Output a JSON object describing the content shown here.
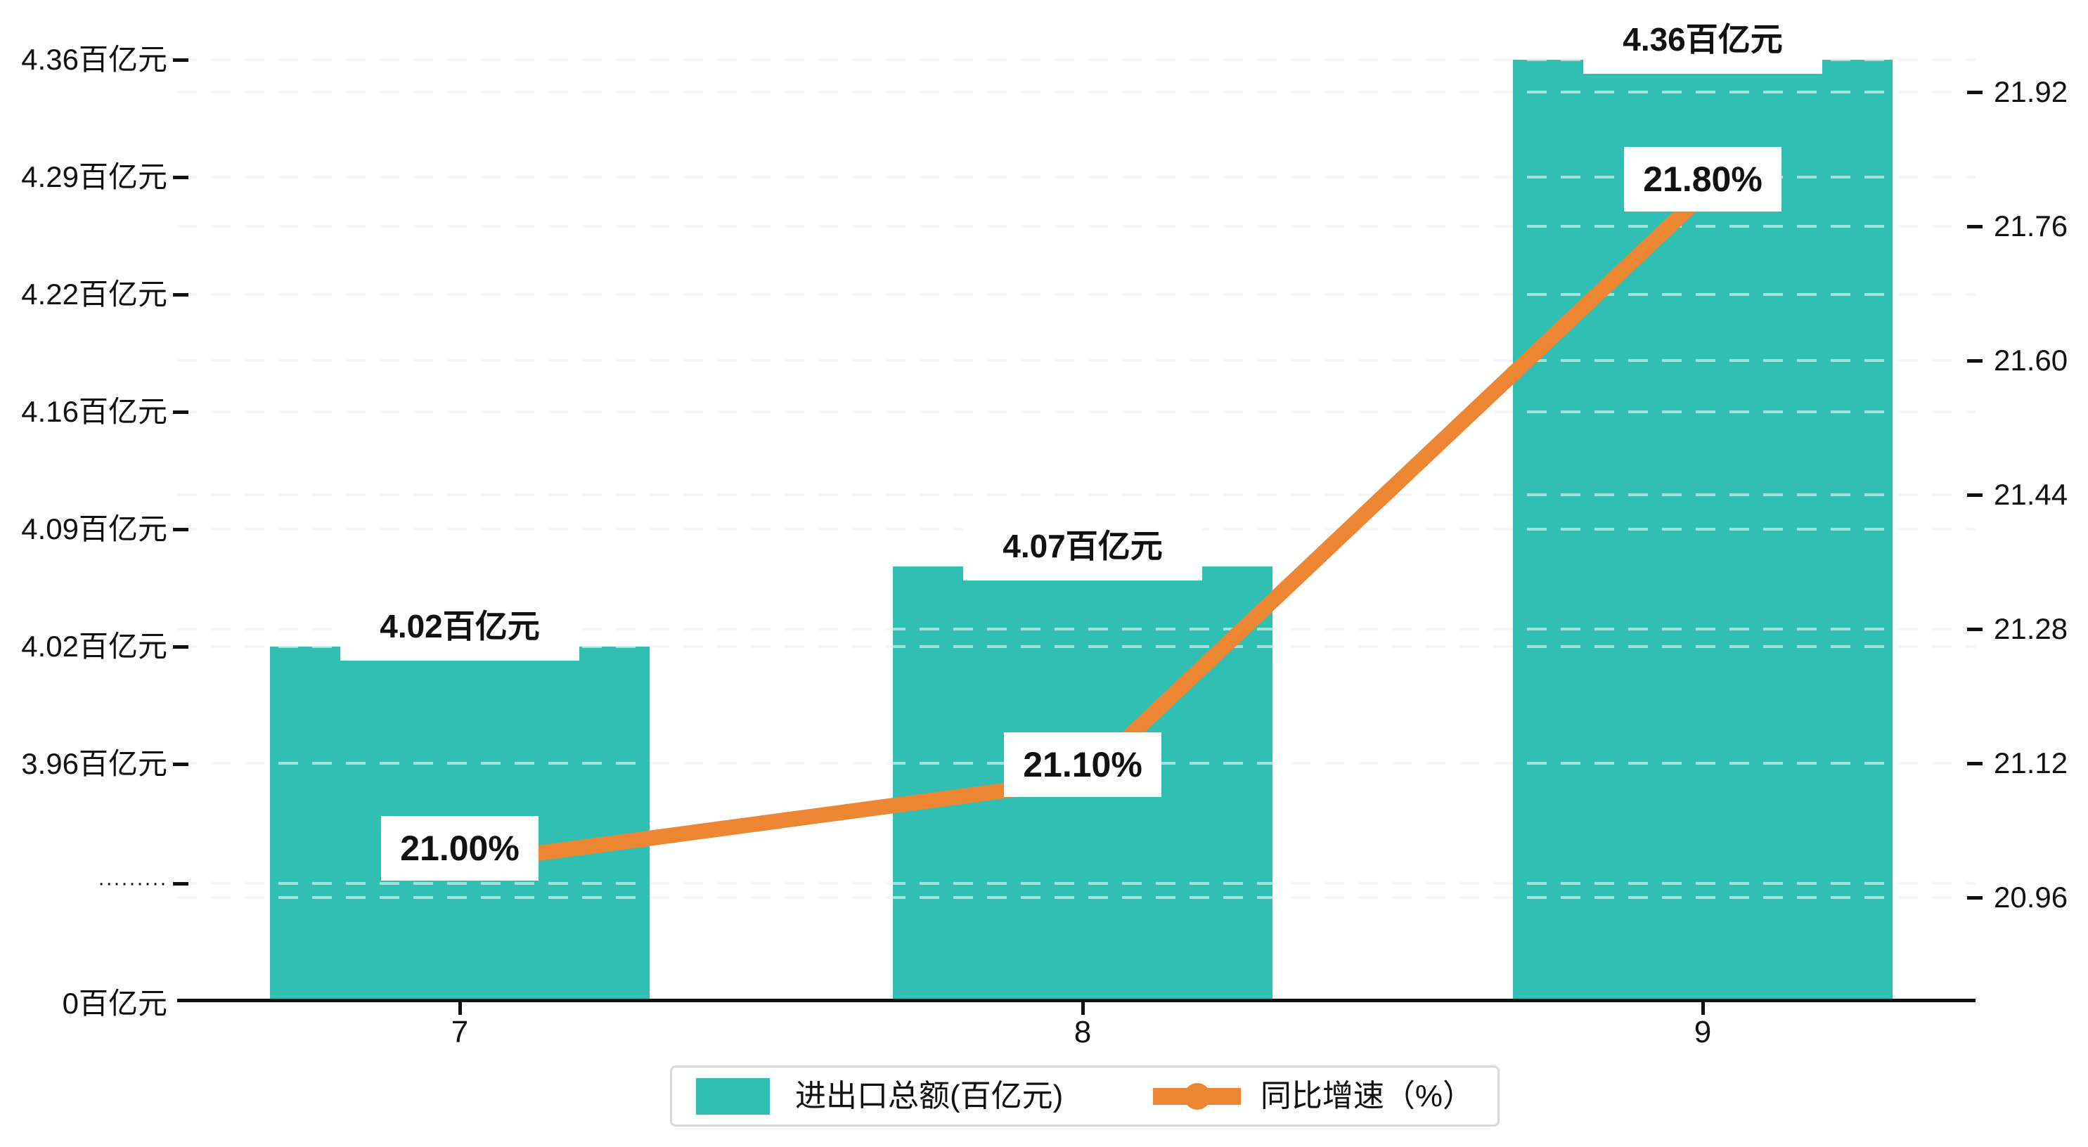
{
  "chart_data": {
    "type": "combo-bar-line",
    "categories": [
      "7",
      "8",
      "9"
    ],
    "series": [
      {
        "name": "进出口总额(百亿元)",
        "type": "bar",
        "values": [
          4.02,
          4.07,
          4.36
        ],
        "unit": "百亿元",
        "color": "#30BFB2",
        "point_labels": [
          "4.02百亿元",
          "4.07百亿元",
          "4.36百亿元"
        ],
        "axis": "left"
      },
      {
        "name": "同比增速（%）",
        "type": "line",
        "values": [
          21.0,
          21.1,
          21.8
        ],
        "unit": "%",
        "color": "#ED8633",
        "point_labels": [
          "21.00%",
          "21.10%",
          "21.80%"
        ],
        "axis": "right"
      }
    ],
    "left_axis": {
      "tick_labels": [
        "4.36百亿元",
        "4.29百亿元",
        "4.22百亿元",
        "4.16百亿元",
        "4.09百亿元",
        "4.02百亿元",
        "3.96百亿元"
      ],
      "break_marker": "·········",
      "zero_label": "0百亿元",
      "broken_axis": true
    },
    "right_axis": {
      "tick_labels": [
        "21.92",
        "21.76",
        "21.60",
        "21.44",
        "21.28",
        "21.12",
        "20.96"
      ],
      "range": [
        20.96,
        21.92
      ]
    },
    "grid": true,
    "legend_position": "bottom"
  },
  "legend": {
    "items": [
      {
        "label": "进出口总额(百亿元)",
        "marker": "bar-swatch",
        "color": "#30BFB2"
      },
      {
        "label": "同比增速（%）",
        "marker": "line-dot-marker",
        "color": "#ED8633"
      }
    ]
  },
  "colors": {
    "bar": "#30BFB2",
    "line": "#ED8633",
    "axis": "#111111",
    "gridline": "#eaeaea",
    "legend_border": "#d9d9d9",
    "label_background": "#ffffff"
  }
}
